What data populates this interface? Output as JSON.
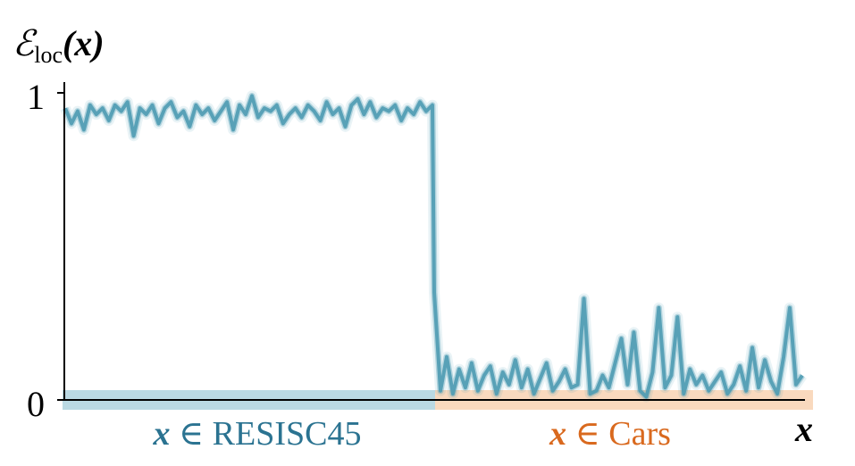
{
  "chart_data": {
    "type": "line",
    "ylabel": {
      "main": "ℰ",
      "sub": "loc",
      "arg": "(x)"
    },
    "xlabel": "x",
    "yticks": [
      {
        "value": 0,
        "label": "0"
      },
      {
        "value": 1,
        "label": "1"
      }
    ],
    "ylim": [
      0,
      1
    ],
    "grid": false,
    "regions": [
      {
        "label_var": "x",
        "label_rel": " ∈ ",
        "label_set": "RESISC45",
        "color": "#2b7391",
        "fill": "#a9cfdc"
      },
      {
        "label_var": "x",
        "label_rel": " ∈ ",
        "label_set": "Cars",
        "color": "#d9691e",
        "fill": "#f7cfae"
      }
    ],
    "line_color": "#4e9bb2",
    "series": [
      {
        "region": 0,
        "values": [
          0.95,
          0.9,
          0.94,
          0.88,
          0.96,
          0.93,
          0.95,
          0.91,
          0.96,
          0.94,
          0.97,
          0.86,
          0.95,
          0.93,
          0.96,
          0.9,
          0.95,
          0.97,
          0.92,
          0.94,
          0.89,
          0.96,
          0.93,
          0.95,
          0.91,
          0.94,
          0.97,
          0.88,
          0.96,
          0.93,
          0.99,
          0.92,
          0.95,
          0.94,
          0.96,
          0.9,
          0.93,
          0.95,
          0.92,
          0.96,
          0.94,
          0.91,
          0.97,
          0.93,
          0.95,
          0.89,
          0.96,
          0.98,
          0.93,
          0.97,
          0.92,
          0.95,
          0.94,
          0.96,
          0.91,
          0.95,
          0.93,
          0.97,
          0.94,
          0.96
        ]
      },
      {
        "region": 1,
        "values": [
          0.35,
          0.03,
          0.14,
          0.02,
          0.1,
          0.04,
          0.12,
          0.03,
          0.08,
          0.11,
          0.02,
          0.09,
          0.05,
          0.13,
          0.04,
          0.1,
          0.02,
          0.07,
          0.12,
          0.03,
          0.06,
          0.1,
          0.04,
          0.05,
          0.33,
          0.02,
          0.03,
          0.08,
          0.04,
          0.12,
          0.2,
          0.05,
          0.22,
          0.03,
          0.01,
          0.09,
          0.3,
          0.04,
          0.08,
          0.27,
          0.02,
          0.1,
          0.05,
          0.08,
          0.03,
          0.06,
          0.09,
          0.02,
          0.05,
          0.11,
          0.03,
          0.17,
          0.04,
          0.13,
          0.06,
          0.02,
          0.14,
          0.3,
          0.05,
          0.08
        ]
      }
    ]
  }
}
